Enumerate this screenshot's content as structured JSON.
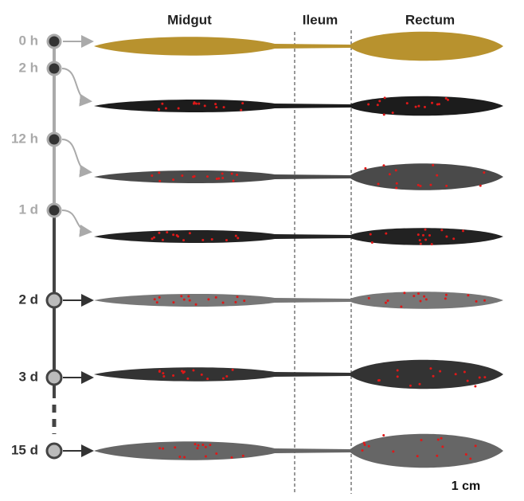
{
  "headers": {
    "midgut": "Midgut",
    "ileum": "Ileum",
    "rectum": "Rectum"
  },
  "timepoints": [
    "0 h",
    "2 h",
    "12 h",
    "1 d",
    "2 d",
    "3 d",
    "15 d"
  ],
  "scale_bar": "1 cm"
}
